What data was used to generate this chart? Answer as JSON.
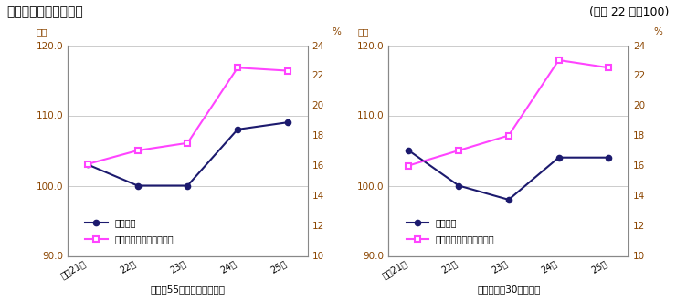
{
  "title": "図３－１　雇用の推移",
  "subtitle": "(平成 22 年＝100)",
  "left": {
    "xlabel": "《規樨55人以上全事業所》",
    "x_labels": [
      "平成21年",
      "22年",
      "23年",
      "24年",
      "25年"
    ],
    "koyo": [
      103.0,
      100.0,
      100.0,
      108.0,
      109.0
    ],
    "part": [
      16.1,
      17.0,
      17.5,
      22.5,
      22.3
    ]
  },
  "right": {
    "xlabel": "《うち規樨30人以上》",
    "x_labels": [
      "平成21年",
      "22年",
      "23年",
      "24年",
      "25年"
    ],
    "koyo": [
      105.0,
      100.0,
      98.0,
      104.0,
      104.0
    ],
    "part": [
      16.0,
      17.0,
      18.0,
      23.0,
      22.5
    ]
  },
  "ylim_left": [
    90.0,
    120.0
  ],
  "ylim_right": [
    10.0,
    24.0
  ],
  "yticks_left": [
    90.0,
    100.0,
    110.0,
    120.0
  ],
  "yticks_right": [
    10,
    12,
    14,
    16,
    18,
    20,
    22,
    24
  ],
  "koyo_color": "#1c1a6e",
  "part_color": "#ff44ff",
  "legend_koyo": "雇用指数",
  "legend_part": "パートタイム労働者比率",
  "ylabel_left": "指数",
  "ylabel_right": "%",
  "grid_color": "#cccccc",
  "axis_color": "#888888",
  "tick_color": "#8b4500",
  "title_color": "#000000",
  "subtitle_color": "#000000"
}
